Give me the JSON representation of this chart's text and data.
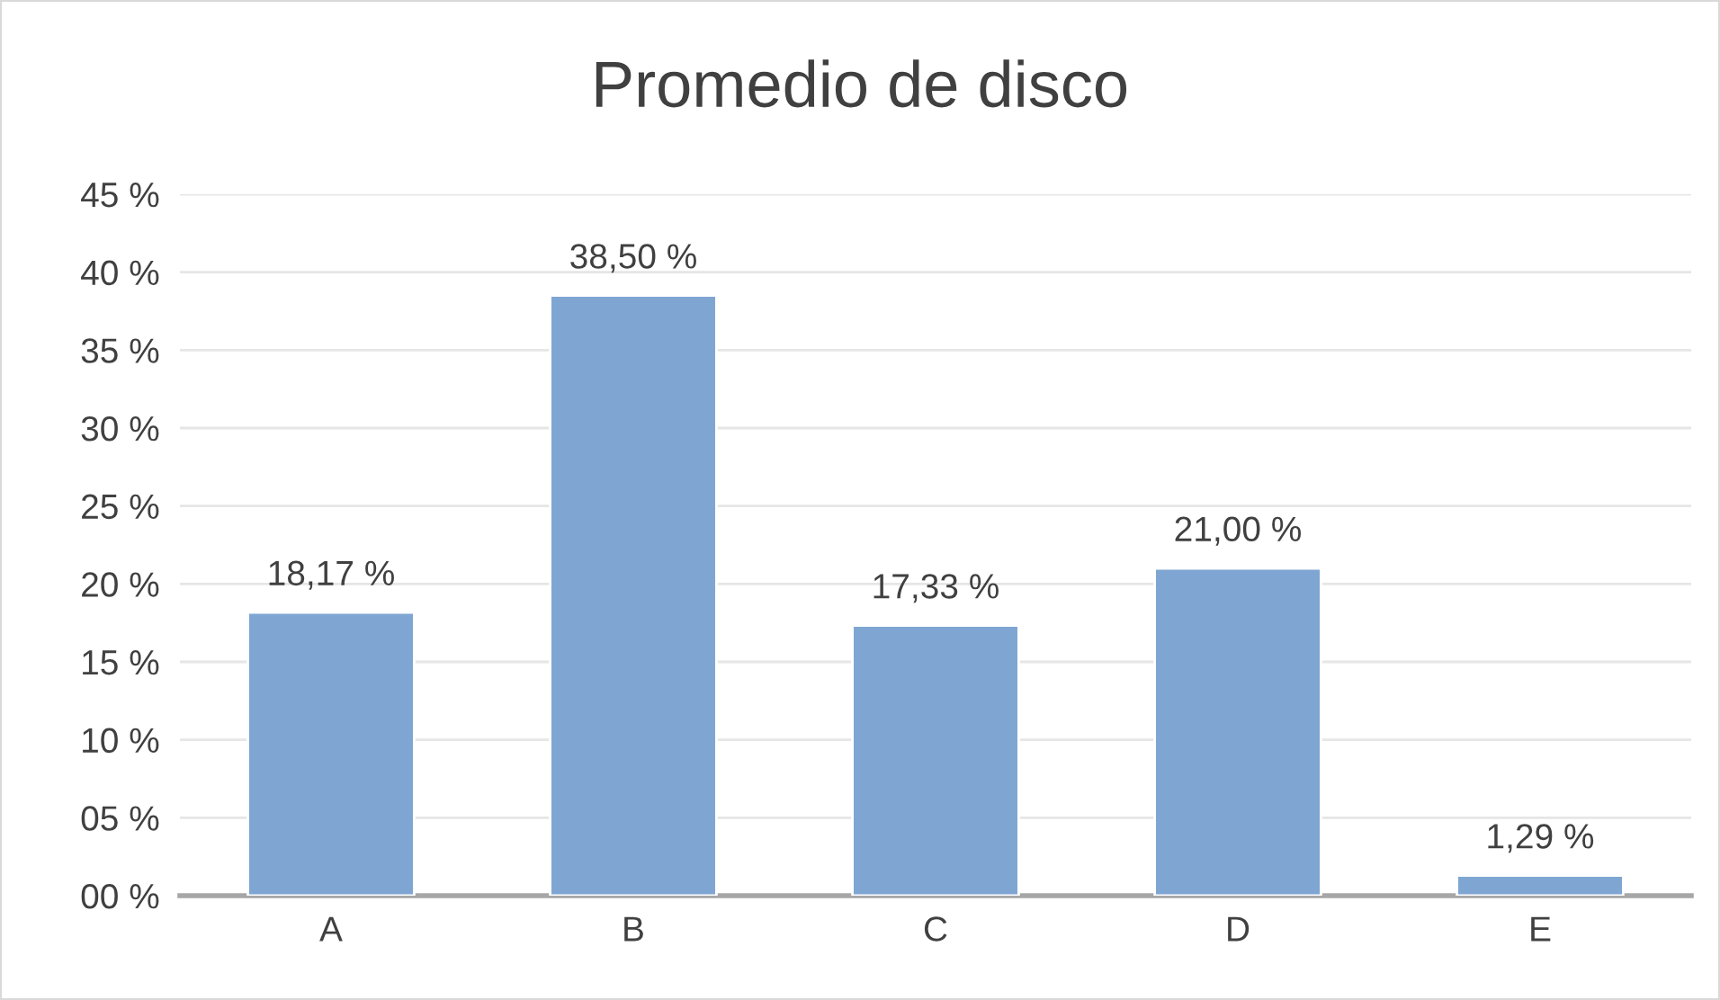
{
  "chart_data": {
    "type": "bar",
    "title": "Promedio de disco",
    "categories": [
      "A",
      "B",
      "C",
      "D",
      "E"
    ],
    "values": [
      18.17,
      38.5,
      17.33,
      21,
      1.29
    ],
    "value_labels": [
      "18,17 %",
      "38,50 %",
      "17,33 %",
      "21,00 %",
      "1,29 %"
    ],
    "color": "#7fa6d2",
    "ylim": [
      0,
      45
    ],
    "yticks": [
      {
        "value": 0,
        "label": "00 %"
      },
      {
        "value": 5,
        "label": "05 %"
      },
      {
        "value": 10,
        "label": "10 %"
      },
      {
        "value": 15,
        "label": "15 %"
      },
      {
        "value": 20,
        "label": "20 %"
      },
      {
        "value": 25,
        "label": "25 %"
      },
      {
        "value": 30,
        "label": "30 %"
      },
      {
        "value": 35,
        "label": "35 %"
      },
      {
        "value": 40,
        "label": "40 %"
      },
      {
        "value": 45,
        "label": "45 %"
      }
    ],
    "grid": "y"
  }
}
